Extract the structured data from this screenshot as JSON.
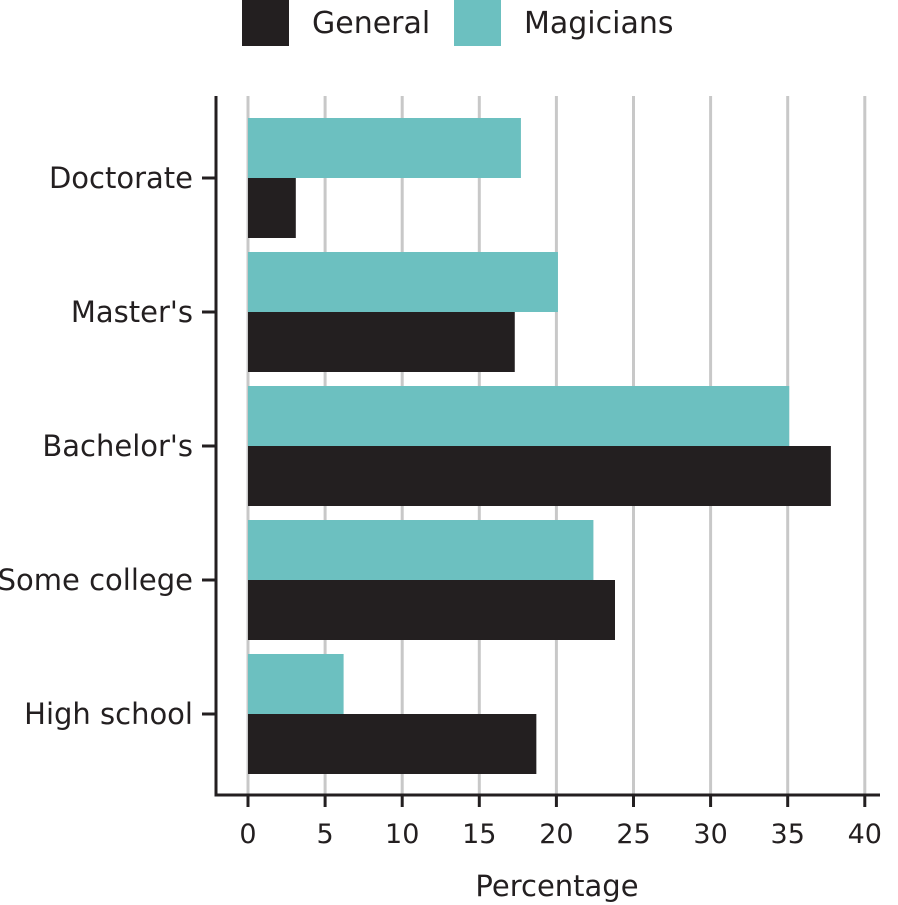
{
  "chart_data": {
    "type": "bar",
    "orientation": "horizontal",
    "categories": [
      "Doctorate",
      "Master's",
      "Bachelor's",
      "Some college",
      "High school"
    ],
    "series": [
      {
        "name": "General",
        "values": [
          3.1,
          17.3,
          37.8,
          23.8,
          18.7
        ],
        "color": "#231f20"
      },
      {
        "name": "Magicians",
        "values": [
          17.7,
          20.1,
          35.1,
          22.4,
          6.2
        ],
        "color": "#6cc0c0"
      }
    ],
    "xlabel": "Percentage",
    "ylabel": "",
    "xlim": [
      0,
      40
    ],
    "xticks": [
      0,
      5,
      10,
      15,
      20,
      25,
      30,
      35,
      40
    ],
    "grid": "vertical",
    "legend": "top"
  }
}
